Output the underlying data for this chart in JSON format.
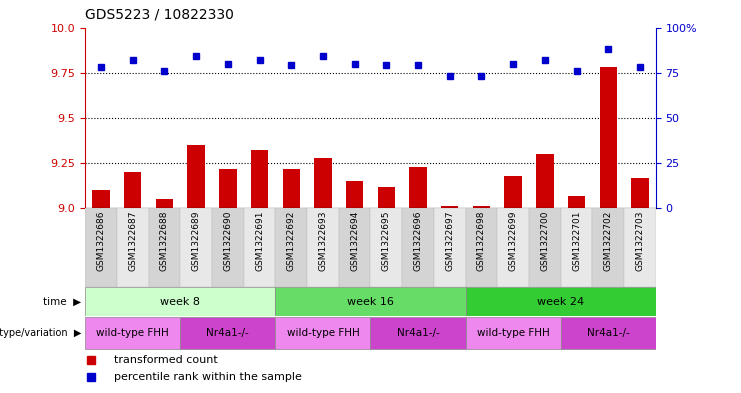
{
  "title": "GDS5223 / 10822330",
  "samples": [
    "GSM1322686",
    "GSM1322687",
    "GSM1322688",
    "GSM1322689",
    "GSM1322690",
    "GSM1322691",
    "GSM1322692",
    "GSM1322693",
    "GSM1322694",
    "GSM1322695",
    "GSM1322696",
    "GSM1322697",
    "GSM1322698",
    "GSM1322699",
    "GSM1322700",
    "GSM1322701",
    "GSM1322702",
    "GSM1322703"
  ],
  "transformed_count": [
    9.1,
    9.2,
    9.05,
    9.35,
    9.22,
    9.32,
    9.22,
    9.28,
    9.15,
    9.12,
    9.23,
    9.01,
    9.01,
    9.18,
    9.3,
    9.07,
    9.78,
    9.17
  ],
  "percentile_rank": [
    78,
    82,
    76,
    84,
    80,
    82,
    79,
    84,
    80,
    79,
    79,
    73,
    73,
    80,
    82,
    76,
    88,
    78
  ],
  "ylim_left": [
    9.0,
    10.0
  ],
  "ylim_right": [
    0,
    100
  ],
  "yticks_left": [
    9.0,
    9.25,
    9.5,
    9.75,
    10.0
  ],
  "yticks_right": [
    0,
    25,
    50,
    75,
    100
  ],
  "bar_color": "#cc0000",
  "dot_color": "#0000cc",
  "time_groups": [
    {
      "label": "week 8",
      "start": 0,
      "end": 5,
      "color": "#ccffcc"
    },
    {
      "label": "week 16",
      "start": 6,
      "end": 11,
      "color": "#66dd66"
    },
    {
      "label": "week 24",
      "start": 12,
      "end": 17,
      "color": "#33cc33"
    }
  ],
  "genotype_groups": [
    {
      "label": "wild-type FHH",
      "start": 0,
      "end": 2,
      "color": "#ee88ee"
    },
    {
      "label": "Nr4a1-/-",
      "start": 3,
      "end": 5,
      "color": "#cc44cc"
    },
    {
      "label": "wild-type FHH",
      "start": 6,
      "end": 8,
      "color": "#ee88ee"
    },
    {
      "label": "Nr4a1-/-",
      "start": 9,
      "end": 11,
      "color": "#cc44cc"
    },
    {
      "label": "wild-type FHH",
      "start": 12,
      "end": 14,
      "color": "#ee88ee"
    },
    {
      "label": "Nr4a1-/-",
      "start": 15,
      "end": 17,
      "color": "#cc44cc"
    }
  ],
  "legend_items": [
    {
      "label": "transformed count",
      "color": "#cc0000"
    },
    {
      "label": "percentile rank within the sample",
      "color": "#0000cc"
    }
  ],
  "fig_width": 7.41,
  "fig_height": 3.93,
  "dpi": 100
}
